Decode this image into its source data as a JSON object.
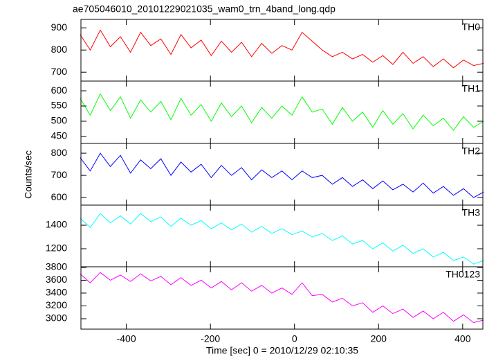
{
  "chart_data": [
    {
      "type": "line",
      "title": "ae705046010_20101229021035_wam0_trn_4band_long.qdp",
      "x": [
        -510,
        -486,
        -462,
        -438,
        -414,
        -390,
        -366,
        -342,
        -318,
        -294,
        -270,
        -246,
        -222,
        -198,
        -174,
        -150,
        -126,
        -102,
        -78,
        -54,
        -30,
        -6,
        18,
        42,
        66,
        90,
        114,
        138,
        162,
        186,
        210,
        234,
        258,
        282,
        306,
        330,
        354,
        378,
        402,
        426,
        450
      ],
      "series": [
        {
          "name": "TH0",
          "color": "#ff0000",
          "values": [
            870,
            800,
            890,
            815,
            860,
            790,
            880,
            820,
            850,
            780,
            870,
            810,
            845,
            775,
            840,
            790,
            835,
            770,
            830,
            785,
            820,
            800,
            880,
            840,
            800,
            770,
            790,
            760,
            780,
            745,
            775,
            735,
            790,
            740,
            770,
            725,
            760,
            720,
            755,
            730,
            740
          ]
        }
      ],
      "xlim": [
        -508,
        448
      ],
      "ylim": [
        660,
        938
      ],
      "yticks": [
        700,
        800,
        900
      ]
    },
    {
      "type": "line",
      "x": [
        -510,
        -486,
        -462,
        -438,
        -414,
        -390,
        -366,
        -342,
        -318,
        -294,
        -270,
        -246,
        -222,
        -198,
        -174,
        -150,
        -126,
        -102,
        -78,
        -54,
        -30,
        -6,
        18,
        42,
        66,
        90,
        114,
        138,
        162,
        186,
        210,
        234,
        258,
        282,
        306,
        330,
        354,
        378,
        402,
        426,
        450
      ],
      "series": [
        {
          "name": "TH1",
          "color": "#00ff00",
          "values": [
            575,
            520,
            590,
            535,
            580,
            510,
            570,
            530,
            565,
            505,
            575,
            520,
            555,
            500,
            560,
            515,
            550,
            495,
            545,
            510,
            550,
            520,
            580,
            530,
            540,
            490,
            545,
            500,
            530,
            480,
            535,
            490,
            525,
            475,
            520,
            485,
            510,
            470,
            515,
            480,
            500
          ]
        }
      ],
      "xlim": [
        -508,
        448
      ],
      "ylim": [
        427,
        632
      ],
      "yticks": [
        450,
        500,
        550,
        600
      ]
    },
    {
      "type": "line",
      "ylabel": "Counts/sec",
      "x": [
        -510,
        -486,
        -462,
        -438,
        -414,
        -390,
        -366,
        -342,
        -318,
        -294,
        -270,
        -246,
        -222,
        -198,
        -174,
        -150,
        -126,
        -102,
        -78,
        -54,
        -30,
        -6,
        18,
        42,
        66,
        90,
        114,
        138,
        162,
        186,
        210,
        234,
        258,
        282,
        306,
        330,
        354,
        378,
        402,
        426,
        450
      ],
      "series": [
        {
          "name": "TH2",
          "color": "#0000ff",
          "values": [
            780,
            720,
            800,
            740,
            790,
            710,
            770,
            730,
            775,
            700,
            760,
            715,
            750,
            690,
            745,
            700,
            735,
            680,
            725,
            690,
            720,
            680,
            720,
            690,
            700,
            660,
            690,
            650,
            680,
            640,
            675,
            635,
            660,
            625,
            665,
            620,
            650,
            610,
            640,
            600,
            625
          ]
        }
      ],
      "xlim": [
        -508,
        448
      ],
      "ylim": [
        566,
        844
      ],
      "yticks": [
        600,
        700,
        800
      ]
    },
    {
      "type": "line",
      "x": [
        -510,
        -486,
        -462,
        -438,
        -414,
        -390,
        -366,
        -342,
        -318,
        -294,
        -270,
        -246,
        -222,
        -198,
        -174,
        -150,
        -126,
        -102,
        -78,
        -54,
        -30,
        -6,
        18,
        42,
        66,
        90,
        114,
        138,
        162,
        186,
        210,
        234,
        258,
        282,
        306,
        330,
        354,
        378,
        402,
        426,
        450
      ],
      "series": [
        {
          "name": "TH3",
          "color": "#00ffff",
          "values": [
            1460,
            1380,
            1500,
            1420,
            1480,
            1410,
            1500,
            1430,
            1470,
            1390,
            1460,
            1400,
            1440,
            1370,
            1420,
            1360,
            1410,
            1340,
            1390,
            1330,
            1370,
            1320,
            1350,
            1300,
            1330,
            1270,
            1310,
            1240,
            1270,
            1200,
            1250,
            1180,
            1230,
            1160,
            1200,
            1130,
            1170,
            1100,
            1130,
            1070,
            1100
          ]
        }
      ],
      "xlim": [
        -508,
        448
      ],
      "ylim": [
        1047,
        1571
      ],
      "yticks": [
        1200,
        1400
      ]
    },
    {
      "type": "line",
      "xlabel": "Time [sec] 0 = 2010/12/29 02:10:35",
      "x": [
        -510,
        -486,
        -462,
        -438,
        -414,
        -390,
        -366,
        -342,
        -318,
        -294,
        -270,
        -246,
        -222,
        -198,
        -174,
        -150,
        -126,
        -102,
        -78,
        -54,
        -30,
        -6,
        18,
        42,
        66,
        90,
        114,
        138,
        162,
        186,
        210,
        234,
        258,
        282,
        306,
        330,
        354,
        378,
        402,
        426,
        450
      ],
      "series": [
        {
          "name": "TH0123",
          "color": "#ff00ff",
          "values": [
            3700,
            3560,
            3720,
            3600,
            3680,
            3580,
            3700,
            3590,
            3660,
            3530,
            3640,
            3520,
            3600,
            3480,
            3580,
            3450,
            3560,
            3430,
            3520,
            3400,
            3480,
            3380,
            3560,
            3360,
            3380,
            3260,
            3320,
            3200,
            3250,
            3100,
            3200,
            3080,
            3150,
            3020,
            3120,
            3000,
            3100,
            2960,
            3060,
            2940,
            2980
          ]
        }
      ],
      "xlim": [
        -508,
        448
      ],
      "xticks": [
        -400,
        -200,
        0,
        200,
        400
      ],
      "ylim": [
        2838,
        3810
      ],
      "yticks": [
        3000,
        3200,
        3400,
        3600,
        3800
      ]
    }
  ]
}
